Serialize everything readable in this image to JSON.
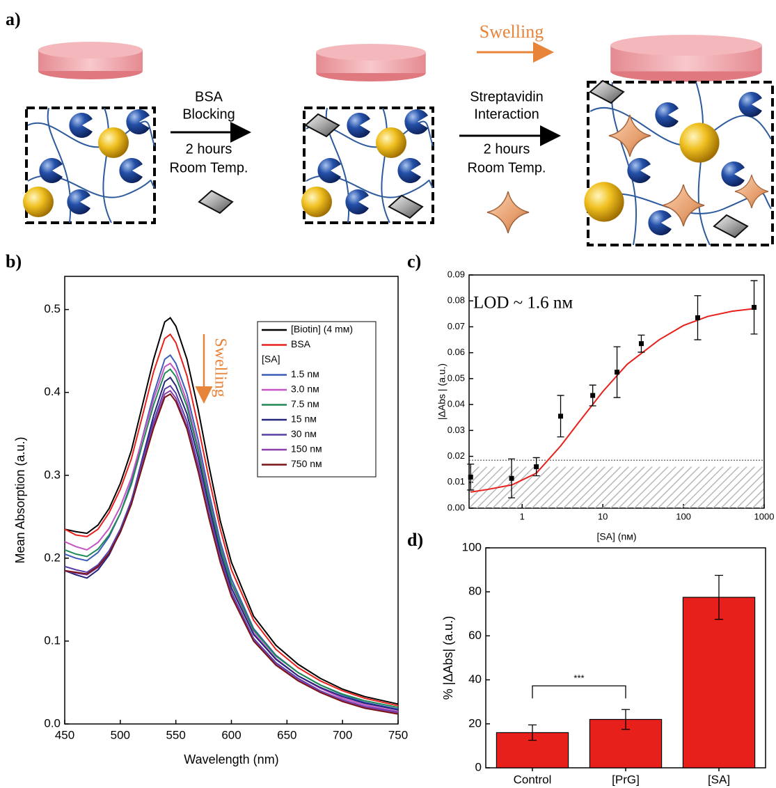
{
  "panel_labels": [
    "a)",
    "b)",
    "c)",
    "d)"
  ],
  "diagram": {
    "step1": {
      "lines": [
        "BSA",
        "Blocking"
      ],
      "time": [
        "2 hours",
        "Room Temp."
      ]
    },
    "step2": {
      "lines": [
        "Streptavidin",
        "Interaction"
      ],
      "time": [
        "2 hours",
        "Room Temp."
      ]
    },
    "swelling": "Swelling"
  },
  "chart_data": [
    {
      "type": "line",
      "xlabel": "Wavelength (nm)",
      "ylabel": "Mean Absorption (a.u.)",
      "xlim": [
        450,
        750
      ],
      "xticks": [
        450,
        500,
        550,
        600,
        650,
        700,
        750
      ],
      "ylim": [
        0,
        0.54
      ],
      "yticks": [
        {
          "value": 0,
          "label": "0.0"
        },
        {
          "value": 0.1,
          "label": "0.1"
        },
        {
          "value": 0.2,
          "label": "0.2"
        },
        {
          "value": 0.3,
          "label": "0.3"
        },
        {
          "value": 0.4,
          "label": "0.4"
        },
        {
          "value": 0.5,
          "label": "0.5"
        }
      ],
      "legend_title": "[SA]",
      "annotation": "Swelling",
      "annotation_color": "#e8833a",
      "x": [
        450,
        460,
        470,
        480,
        490,
        500,
        510,
        520,
        530,
        540,
        545,
        550,
        560,
        570,
        580,
        590,
        600,
        620,
        640,
        660,
        680,
        700,
        720,
        750
      ],
      "series": [
        {
          "name": "[Biotin] (4 mᴍ)",
          "color": "#000000",
          "values": [
            0.235,
            0.232,
            0.23,
            0.24,
            0.26,
            0.29,
            0.33,
            0.385,
            0.44,
            0.485,
            0.49,
            0.48,
            0.44,
            0.38,
            0.31,
            0.245,
            0.195,
            0.13,
            0.095,
            0.072,
            0.055,
            0.042,
            0.033,
            0.024
          ]
        },
        {
          "name": "BSA",
          "color": "#e8201c",
          "values": [
            0.235,
            0.228,
            0.226,
            0.235,
            0.255,
            0.283,
            0.32,
            0.372,
            0.425,
            0.465,
            0.47,
            0.46,
            0.42,
            0.36,
            0.295,
            0.235,
            0.186,
            0.125,
            0.09,
            0.068,
            0.052,
            0.04,
            0.031,
            0.022
          ]
        },
        {
          "name": "1.5 nᴍ",
          "color": "#3a5cb8",
          "values": [
            0.205,
            0.2,
            0.197,
            0.207,
            0.226,
            0.254,
            0.292,
            0.346,
            0.398,
            0.44,
            0.445,
            0.435,
            0.398,
            0.343,
            0.278,
            0.22,
            0.175,
            0.115,
            0.083,
            0.062,
            0.047,
            0.035,
            0.026,
            0.018
          ]
        },
        {
          "name": "3.0 nᴍ",
          "color": "#c454c4",
          "values": [
            0.22,
            0.214,
            0.21,
            0.219,
            0.236,
            0.262,
            0.297,
            0.345,
            0.392,
            0.431,
            0.435,
            0.426,
            0.389,
            0.334,
            0.271,
            0.214,
            0.169,
            0.11,
            0.079,
            0.058,
            0.043,
            0.031,
            0.023,
            0.015
          ]
        },
        {
          "name": "7.5 nᴍ",
          "color": "#1f8a55",
          "values": [
            0.21,
            0.205,
            0.202,
            0.211,
            0.228,
            0.254,
            0.289,
            0.338,
            0.385,
            0.423,
            0.428,
            0.419,
            0.383,
            0.33,
            0.269,
            0.213,
            0.17,
            0.113,
            0.082,
            0.062,
            0.047,
            0.036,
            0.028,
            0.02
          ]
        },
        {
          "name": "15 nᴍ",
          "color": "#24247a",
          "values": [
            0.185,
            0.18,
            0.176,
            0.186,
            0.204,
            0.232,
            0.269,
            0.321,
            0.372,
            0.413,
            0.418,
            0.408,
            0.374,
            0.322,
            0.262,
            0.207,
            0.164,
            0.108,
            0.078,
            0.058,
            0.044,
            0.033,
            0.025,
            0.017
          ]
        },
        {
          "name": "30 nᴍ",
          "color": "#5a3ea8",
          "values": [
            0.19,
            0.186,
            0.183,
            0.192,
            0.209,
            0.235,
            0.27,
            0.318,
            0.365,
            0.404,
            0.408,
            0.399,
            0.365,
            0.313,
            0.254,
            0.201,
            0.159,
            0.103,
            0.074,
            0.055,
            0.04,
            0.029,
            0.021,
            0.014
          ]
        },
        {
          "name": "150 nᴍ",
          "color": "#8a3fa8",
          "values": [
            0.185,
            0.182,
            0.18,
            0.189,
            0.206,
            0.231,
            0.265,
            0.313,
            0.36,
            0.398,
            0.402,
            0.393,
            0.359,
            0.309,
            0.25,
            0.197,
            0.156,
            0.101,
            0.072,
            0.053,
            0.039,
            0.028,
            0.02,
            0.013
          ]
        },
        {
          "name": "750 nᴍ",
          "color": "#7a1414",
          "values": [
            0.185,
            0.183,
            0.181,
            0.19,
            0.206,
            0.231,
            0.265,
            0.311,
            0.357,
            0.394,
            0.398,
            0.389,
            0.356,
            0.305,
            0.247,
            0.195,
            0.154,
            0.1,
            0.071,
            0.052,
            0.038,
            0.027,
            0.019,
            0.012
          ]
        }
      ]
    },
    {
      "type": "scatter",
      "xlabel": "[SA] (nᴍ)",
      "ylabel": "|ΔAbs | (a.u.)",
      "annotation": "LOD ~ 1.6 nᴍ",
      "xscale": "log",
      "xlim": [
        0.22,
        1000
      ],
      "xticks": [
        1,
        10,
        100,
        1000
      ],
      "ylim": [
        0,
        0.09
      ],
      "yticks": [
        {
          "value": 0,
          "label": "0.00"
        },
        {
          "value": 0.01,
          "label": "0.01"
        },
        {
          "value": 0.02,
          "label": "0.02"
        },
        {
          "value": 0.03,
          "label": "0.03"
        },
        {
          "value": 0.04,
          "label": "0.04"
        },
        {
          "value": 0.05,
          "label": "0.05"
        },
        {
          "value": 0.06,
          "label": "0.06"
        },
        {
          "value": 0.07,
          "label": "0.07"
        },
        {
          "value": 0.08,
          "label": "0.08"
        },
        {
          "value": 0.09,
          "label": "0.09"
        }
      ],
      "color": "#000000",
      "x": [
        0.23,
        0.74,
        1.5,
        3,
        7.5,
        15,
        30,
        150,
        750
      ],
      "values": [
        0.012,
        0.0115,
        0.016,
        0.0355,
        0.0435,
        0.0525,
        0.0635,
        0.0735,
        0.0775
      ],
      "errors": [
        0.005,
        0.0075,
        0.0035,
        0.008,
        0.004,
        0.0098,
        0.0033,
        0.0085,
        0.0103
      ],
      "fit": {
        "color": "#e8201c",
        "x": [
          0.23,
          0.37,
          0.75,
          1.5,
          3,
          5,
          10,
          20,
          50,
          100,
          200,
          400,
          750
        ],
        "values": [
          0.0062,
          0.0072,
          0.009,
          0.0135,
          0.024,
          0.033,
          0.045,
          0.0555,
          0.065,
          0.0705,
          0.074,
          0.076,
          0.077
        ]
      },
      "threshold": 0.0185,
      "blank_band": [
        0,
        0.016
      ]
    },
    {
      "type": "bar",
      "ylabel": "% |ΔAbs| (a.u.)",
      "annotation": "***",
      "categories": [
        "Control",
        "[PrG]",
        "[SA]"
      ],
      "values": [
        16,
        22,
        77.5
      ],
      "errors": [
        3.5,
        4.5,
        10
      ],
      "color": "#e8201c",
      "ylim": [
        0,
        100
      ],
      "yticks": [
        0,
        20,
        40,
        60,
        80,
        100
      ]
    }
  ]
}
